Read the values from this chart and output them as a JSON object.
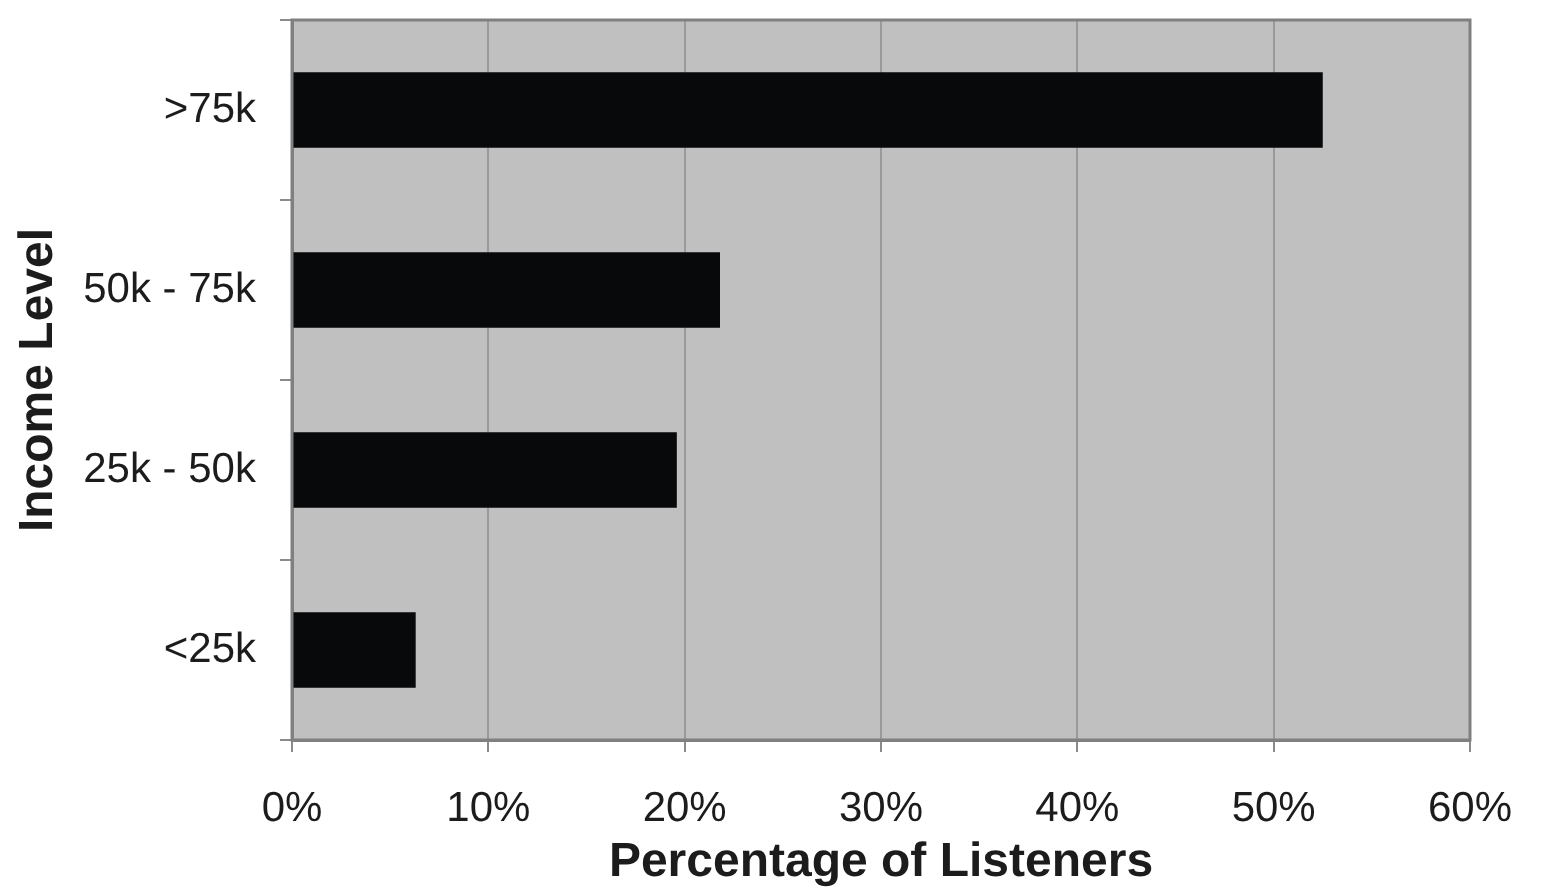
{
  "chart_data": {
    "type": "bar",
    "orientation": "horizontal",
    "xlabel": "Percentage of Listeners",
    "ylabel": "Income Level",
    "categories": [
      ">75k",
      "50k - 75k",
      "25k - 50k",
      "<25k"
    ],
    "values": [
      52.5,
      21.8,
      19.6,
      6.3
    ],
    "color": "#08090b",
    "xlim": [
      0,
      60
    ],
    "xticks": [
      {
        "value": 0,
        "label": "0%"
      },
      {
        "value": 10,
        "label": "10%"
      },
      {
        "value": 20,
        "label": "20%"
      },
      {
        "value": 30,
        "label": "30%"
      },
      {
        "value": 40,
        "label": "40%"
      },
      {
        "value": 50,
        "label": "50%"
      },
      {
        "value": 60,
        "label": "60%"
      }
    ],
    "grid": "x"
  }
}
